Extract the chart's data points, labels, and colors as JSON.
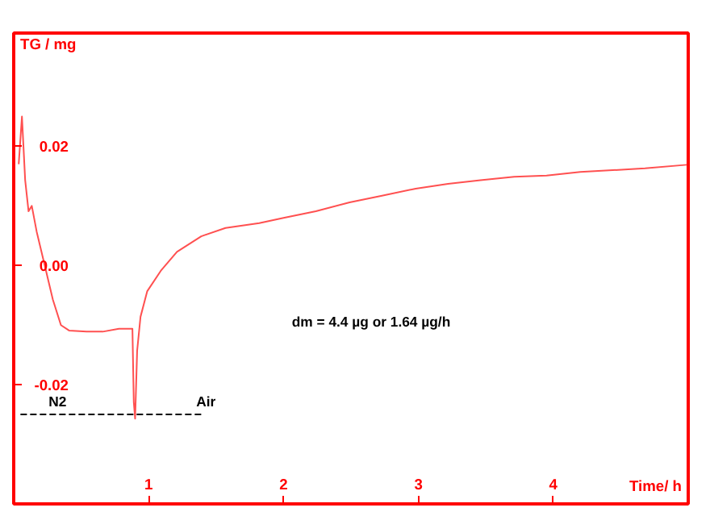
{
  "chart_data": {
    "type": "line",
    "xlabel": "Time/ h",
    "ylabel": "TG / mg",
    "xlim": [
      0,
      5
    ],
    "ylim": [
      -0.04,
      0.039
    ],
    "xticks": [
      1,
      2,
      3,
      4
    ],
    "yticks": [
      {
        "value": 0.02,
        "label": "0.02"
      },
      {
        "value": 0,
        "label": "0.00"
      },
      {
        "value": -0.02,
        "label": "-0.02"
      }
    ],
    "grid": false,
    "marker": "none",
    "series": [
      {
        "color": "#ff5050",
        "x": [
          0.037,
          0.061,
          0.085,
          0.11,
          0.134,
          0.17,
          0.23,
          0.29,
          0.35,
          0.41,
          0.54,
          0.66,
          0.78,
          0.88,
          0.89,
          0.9,
          0.915,
          0.94,
          0.99,
          1.09,
          1.21,
          1.39,
          1.57,
          1.82,
          2.0,
          2.24,
          2.49,
          2.73,
          2.98,
          3.22,
          3.46,
          3.71,
          3.95,
          4.2,
          4.44,
          4.68,
          4.99
        ],
        "values": [
          0.017,
          0.025,
          0.0143,
          0.0091,
          0.01,
          0.0057,
          0.0,
          -0.0057,
          -0.01,
          -0.0109,
          -0.0111,
          -0.0111,
          -0.0106,
          -0.0106,
          -0.0229,
          -0.0257,
          -0.0143,
          -0.0086,
          -0.0043,
          -0.0009,
          0.0023,
          0.0049,
          0.0063,
          0.0071,
          0.008,
          0.0091,
          0.0106,
          0.0117,
          0.0129,
          0.0137,
          0.0143,
          0.0149,
          0.0151,
          0.0157,
          0.016,
          0.0163,
          0.0169
        ]
      },
      {
        "color": "#000000",
        "line_style": "dashed",
        "x": [
          0.05,
          1.41
        ],
        "values": [
          -0.025,
          -0.025
        ]
      }
    ],
    "annotations": [
      "N2",
      "Air",
      "dm = 4.4 µg    or     1.64 µg/h"
    ]
  }
}
